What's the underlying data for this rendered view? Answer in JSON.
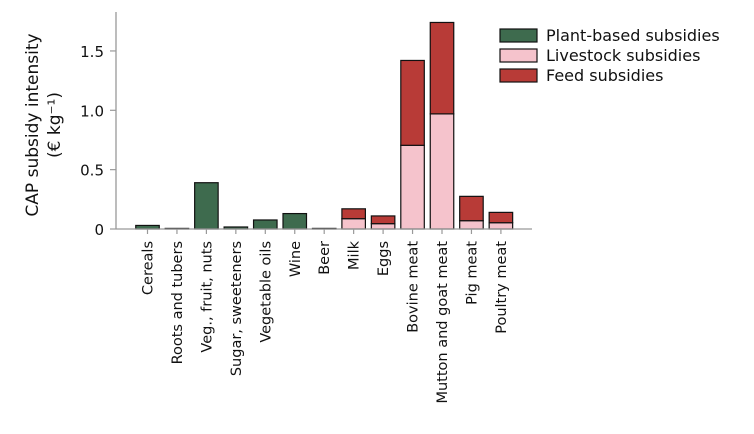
{
  "chart_data": {
    "type": "bar",
    "stacked": true,
    "title": "",
    "xlabel": "",
    "ylabel": "CAP subsidy intensity",
    "ylabel_unit": "(€ kg⁻¹)",
    "ylim": [
      0,
      1.8
    ],
    "yticks": [
      0,
      0.5,
      1.0,
      1.5
    ],
    "ytick_labels": [
      "0",
      "0.5",
      "1.0",
      "1.5"
    ],
    "grid": false,
    "legend_position": "top-right",
    "categories": [
      "Cereals",
      "Roots and tubers",
      "Veg., fruit, nuts",
      "Sugar, sweeteners",
      "Vegetable oils",
      "Wine",
      "Beer",
      "Milk",
      "Eggs",
      "Bovine meat",
      "Mutton and goat meat",
      "Pig meat",
      "Poultry meat"
    ],
    "series": [
      {
        "name": "Plant-based subsidies",
        "color": "#3e6b4e",
        "values": [
          0.03,
          0.005,
          0.39,
          0.017,
          0.076,
          0.13,
          0.005,
          0,
          0,
          0,
          0,
          0,
          0
        ]
      },
      {
        "name": "Livestock subsidies",
        "color": "#f5c3cc",
        "values": [
          0,
          0,
          0,
          0,
          0,
          0,
          0,
          0.087,
          0.045,
          0.705,
          0.97,
          0.07,
          0.053
        ]
      },
      {
        "name": "Feed subsidies",
        "color": "#b83b37",
        "values": [
          0,
          0,
          0,
          0,
          0,
          0,
          0,
          0.083,
          0.065,
          0.715,
          0.77,
          0.205,
          0.087
        ]
      }
    ]
  }
}
